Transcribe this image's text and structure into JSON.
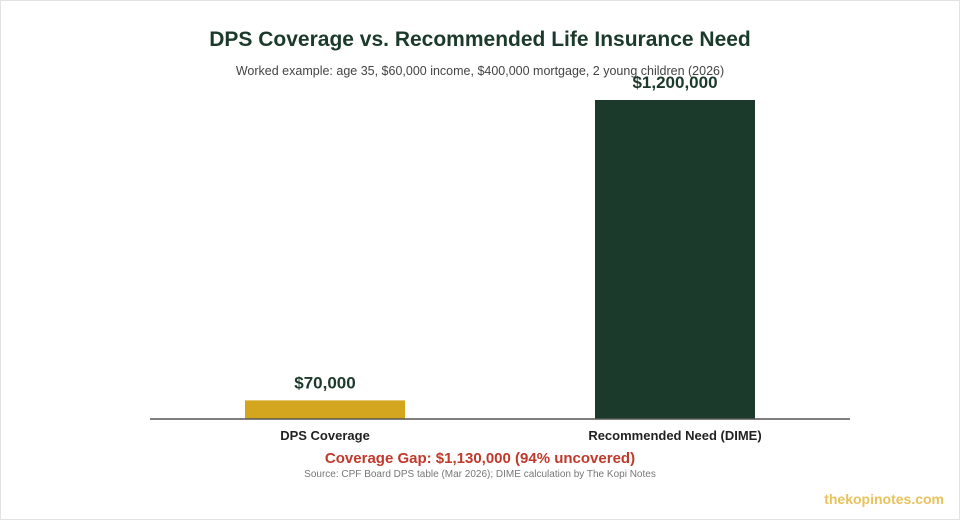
{
  "chart_data": {
    "type": "bar",
    "title": "DPS Coverage vs. Recommended Life Insurance Need",
    "subtitle": "Worked example: age 35, $60,000 income, $400,000 mortgage, 2 young children (2026)",
    "categories": [
      "DPS Coverage",
      "Recommended Need (DIME)"
    ],
    "values": [
      70000,
      1200000
    ],
    "value_labels": [
      "$70,000",
      "$1,200,000"
    ],
    "colors": [
      "#d4a51e",
      "#1c3a2c"
    ],
    "ylim": [
      0,
      1200000
    ],
    "grid": false,
    "legend": "none",
    "xlabel": "",
    "ylabel": ""
  },
  "annotation": {
    "gap": "Coverage Gap: $1,130,000 (94% uncovered)",
    "source": "Source: CPF Board DPS table (Mar 2026); DIME calculation by The Kopi Notes"
  },
  "brand": "thekopinotes.com",
  "colors": {
    "title": "#1c3a2c",
    "gap": "#c0392b",
    "brand": "#e8c25a"
  }
}
